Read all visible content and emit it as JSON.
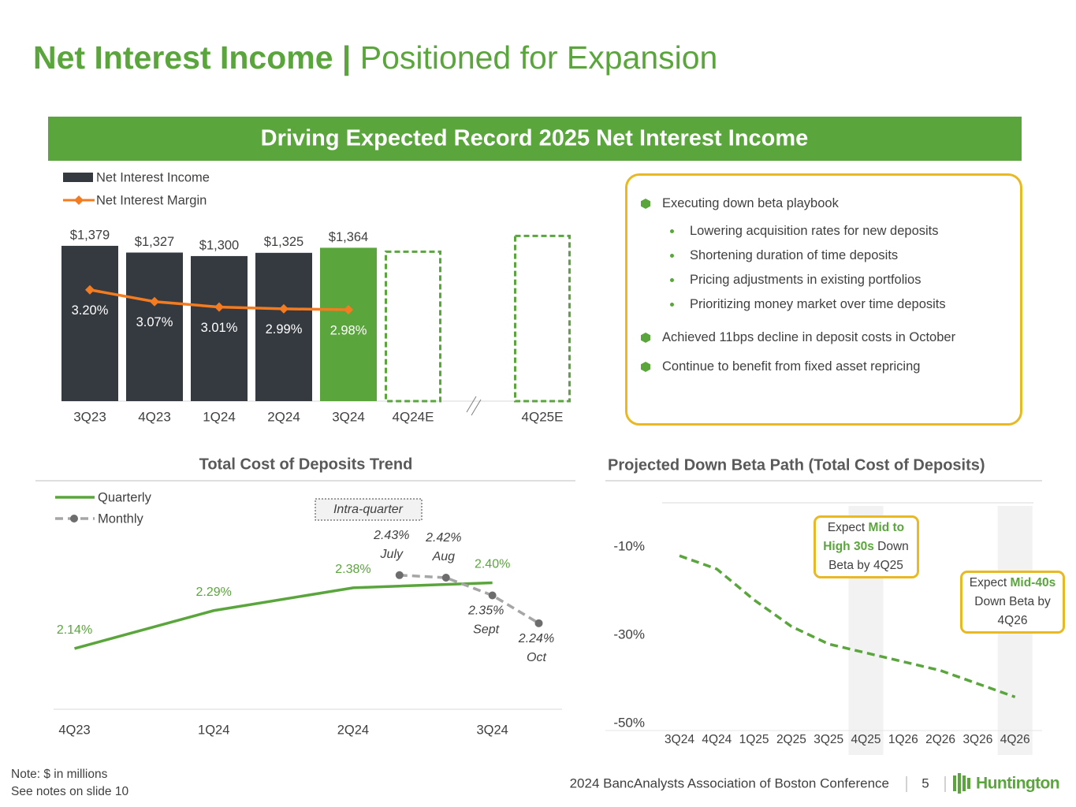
{
  "header": {
    "title_bold": "Net Interest Income |",
    "title_light": "Positioned for Expansion",
    "banner": "Driving Expected Record 2025 Net Interest Income"
  },
  "chart_data": [
    {
      "type": "bar",
      "categories": [
        "3Q23",
        "4Q23",
        "1Q24",
        "2Q24",
        "3Q24",
        "4Q24E",
        "4Q25E"
      ],
      "axis_break": true,
      "legend": "top-left",
      "ylim": [
        182,
        1500
      ],
      "y2lim": [
        1.97,
        3.86
      ],
      "series": [
        {
          "name": "Net Interest Income",
          "type": "bar",
          "colors": [
            "#343a40",
            "#343a40",
            "#343a40",
            "#343a40",
            "#5aa63c",
            "#5aa63c",
            "#5aa63c"
          ],
          "dashed": [
            false,
            false,
            false,
            false,
            false,
            true,
            true
          ],
          "values": [
            1379,
            1327,
            1300,
            1325,
            1364,
            1343,
            1464
          ],
          "value_labels": [
            "$1,379",
            "$1,327",
            "$1,300",
            "$1,325",
            "$1,364",
            null,
            null
          ]
        },
        {
          "name": "Net Interest Margin",
          "type": "line",
          "axis": "y2",
          "color": "#f47b20",
          "values": [
            3.2,
            3.07,
            3.01,
            2.99,
            2.98,
            null,
            null
          ],
          "value_labels": [
            "3.20%",
            "3.07%",
            "3.01%",
            "2.99%",
            "2.98%",
            null,
            null
          ]
        }
      ]
    },
    {
      "type": "line",
      "title": "Total Cost of Deposits Trend",
      "legend": "top-left",
      "annotation": "Intra-quarter",
      "xlim": [
        -0.15,
        3.5
      ],
      "xticks": [
        {
          "value": 0,
          "label": "4Q23"
        },
        {
          "value": 1,
          "label": "1Q24"
        },
        {
          "value": 2,
          "label": "2Q24"
        },
        {
          "value": 3,
          "label": "3Q24"
        }
      ],
      "ylim": [
        1.9,
        2.8
      ],
      "series": [
        {
          "name": "Quarterly",
          "color": "#5aa63c",
          "x": [
            0,
            1,
            2,
            3
          ],
          "values": [
            2.14,
            2.29,
            2.38,
            2.4
          ],
          "value_labels": [
            "2.14%",
            "2.29%",
            "2.38%",
            "2.40%"
          ]
        },
        {
          "name": "Monthly",
          "color": "#a6a6a6",
          "marker_color": "#6d6d6d",
          "dashed": true,
          "x": [
            2.333,
            2.667,
            3,
            3.333
          ],
          "values": [
            2.43,
            2.42,
            2.35,
            2.24
          ],
          "value_labels": [
            "2.43%",
            "2.42%",
            "2.35%",
            "2.24%"
          ],
          "point_labels": [
            "July",
            "Aug",
            "Sept",
            "Oct"
          ]
        }
      ]
    },
    {
      "type": "line",
      "title": "Projected Down Beta Path (Total Cost of Deposits)",
      "categories": [
        "3Q24",
        "4Q24",
        "1Q25",
        "2Q25",
        "3Q25",
        "4Q25",
        "1Q26",
        "2Q26",
        "3Q26",
        "4Q26"
      ],
      "values": [
        -12,
        -15,
        -22,
        -28,
        -32,
        -34,
        -36,
        -38,
        -41,
        -44
      ],
      "color": "#5aa63c",
      "dashed": true,
      "ylim": [
        -50,
        0
      ],
      "yticks": [
        {
          "value": -10,
          "label": "-10%"
        },
        {
          "value": -30,
          "label": "-30%"
        },
        {
          "value": -50,
          "label": "-50%"
        }
      ],
      "highlight_categories": [
        "4Q25",
        "4Q26"
      ],
      "annotations": [
        {
          "prefix": "Expect",
          "highlight": "Mid to High 30s",
          "suffix": "Down Beta by 4Q25"
        },
        {
          "prefix": "Expect",
          "highlight": "Mid-40s",
          "suffix": "Down Beta by 4Q26"
        }
      ]
    }
  ],
  "highlights": {
    "bullets": [
      {
        "text": "Executing down beta playbook",
        "sub": [
          "Lowering acquisition rates for new deposits",
          "Shortening duration of time deposits",
          "Pricing adjustments in existing portfolios",
          "Prioritizing money market over time deposits"
        ]
      },
      {
        "text": "Achieved 11bps decline in deposit costs in October",
        "sub": []
      },
      {
        "text": "Continue to benefit from fixed asset repricing",
        "sub": []
      }
    ]
  },
  "footer": {
    "notes": [
      "Note: $ in millions",
      "See notes on slide 10"
    ],
    "conference": "2024 BancAnalysts Association of Boston Conference",
    "page": "5",
    "logo": "Huntington"
  }
}
